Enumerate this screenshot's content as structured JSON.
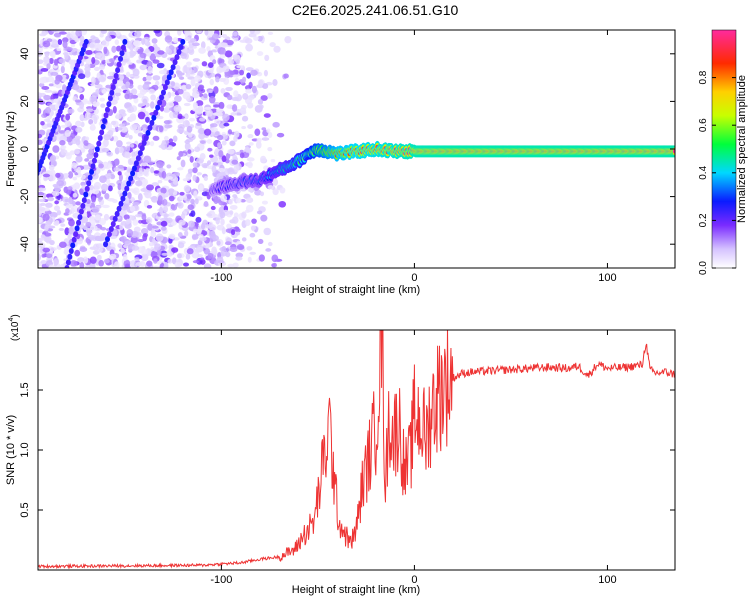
{
  "title": "C2E6.2025.241.06.51.G10",
  "chart_data": [
    {
      "type": "heatmap",
      "name": "spectrogram",
      "xlabel": "Height of straight line (km)",
      "ylabel": "Frequency (Hz)",
      "xlim": [
        -195,
        135
      ],
      "ylim": [
        -50,
        50
      ],
      "xticks": [
        -100,
        0,
        100
      ],
      "yticks": [
        -40,
        -20,
        0,
        20,
        40
      ],
      "colorbar": {
        "label": "Normalized spectral amplitude",
        "range": [
          0.0,
          1.0
        ],
        "ticks": [
          0.0,
          0.2,
          0.4,
          0.6,
          0.8
        ],
        "tick_labels": [
          "0.0",
          "0.2",
          "0.4",
          "0.6",
          "0.8"
        ]
      },
      "dominant_track": {
        "description": "dominant frequency vs height",
        "x": [
          -100,
          -90,
          -80,
          -70,
          -60,
          -55,
          -50,
          -40,
          -30,
          -20,
          -10,
          0,
          20,
          50,
          80,
          100,
          120,
          135
        ],
        "y": [
          -16,
          -14,
          -13,
          -9,
          -5,
          -2,
          0,
          -2,
          -1,
          0,
          -1,
          -1,
          -1,
          -1,
          -1,
          -1,
          -1,
          -1
        ],
        "amplitude": [
          0.25,
          0.3,
          0.35,
          0.45,
          0.55,
          0.6,
          0.7,
          0.85,
          0.9,
          0.92,
          0.95,
          0.98,
          1.0,
          1.0,
          1.0,
          1.0,
          1.0,
          1.0
        ]
      }
    },
    {
      "type": "line",
      "name": "snr",
      "xlabel": "Height of straight line (km)",
      "ylabel": "SNR (10 * v/v)",
      "y_multiplier_label": "(x10",
      "y_multiplier_exp": "4",
      "xlim": [
        -195,
        135
      ],
      "ylim": [
        0,
        20000
      ],
      "xticks": [
        -100,
        0,
        100
      ],
      "yticks": [
        5000,
        10000,
        15000
      ],
      "ytick_labels": [
        "0.5",
        "1.0",
        "1.5"
      ],
      "color": "#ee3333",
      "series": [
        {
          "name": "SNR",
          "x": [
            -195,
            -150,
            -110,
            -90,
            -80,
            -70,
            -62,
            -57,
            -52,
            -48,
            -44,
            -41,
            -39,
            -36,
            -33,
            -30,
            -27,
            -24,
            -20,
            -17,
            -15,
            -13,
            -11,
            -8,
            -5,
            -2,
            0,
            3,
            6,
            9,
            12,
            15,
            20,
            25,
            30,
            40,
            50,
            60,
            70,
            80,
            85,
            90,
            95,
            100,
            110,
            118,
            120,
            122,
            125,
            130,
            135
          ],
          "y": [
            300,
            350,
            400,
            600,
            900,
            1100,
            1700,
            3000,
            4000,
            8000,
            12000,
            6500,
            4000,
            3000,
            2200,
            3500,
            7000,
            9000,
            12000,
            20500,
            7000,
            13000,
            11000,
            12500,
            8000,
            9500,
            13000,
            12500,
            11000,
            13500,
            14500,
            15500,
            16000,
            16400,
            16500,
            16600,
            16700,
            16800,
            16900,
            16800,
            17000,
            16200,
            17200,
            16800,
            16900,
            17100,
            19000,
            16700,
            16400,
            16500,
            16300
          ]
        }
      ]
    }
  ]
}
